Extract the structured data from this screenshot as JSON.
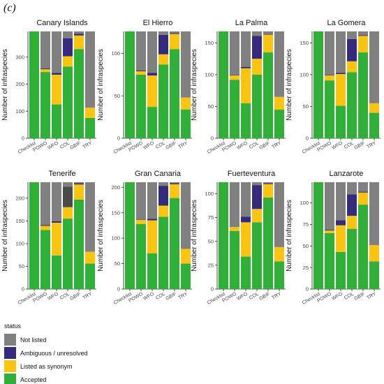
{
  "figure_label": "(c)",
  "legend": {
    "title": "status",
    "entries": [
      {
        "key": "notlisted",
        "label": "Not listed"
      },
      {
        "key": "ambiguous",
        "label": "Ambiguous / unresolved"
      },
      {
        "key": "synonym",
        "label": "Listed as synonym"
      },
      {
        "key": "accepted",
        "label": "Accepted"
      }
    ]
  },
  "colors": {
    "notlisted": "#808080",
    "ambiguous": "#362a7e",
    "synonym": "#fbc40f",
    "accepted": "#2eb136",
    "dark_grey": "#4a4a4a"
  },
  "chart_data": [
    {
      "type": "bar",
      "stacked": true,
      "title": "Canary Islands",
      "ylabel": "Number of infraspecies",
      "ylim": [
        0,
        395
      ],
      "yticks": [
        0,
        100,
        200,
        300
      ],
      "categories": [
        "Checklist",
        "POWO",
        "WFO",
        "COL",
        "GBIF",
        "TRY"
      ],
      "series": [
        {
          "key": "accepted",
          "values": [
            395,
            245,
            125,
            265,
            330,
            75
          ]
        },
        {
          "key": "synonym",
          "values": [
            0,
            10,
            110,
            38,
            50,
            38
          ]
        },
        {
          "key": "ambiguous",
          "values": [
            0,
            3,
            7,
            67,
            6,
            0
          ]
        },
        {
          "key": "notlisted",
          "values": [
            0,
            137,
            153,
            25,
            9,
            282
          ]
        }
      ]
    },
    {
      "type": "bar",
      "stacked": true,
      "title": "El Hierro",
      "ylabel": "Number of infraspecies",
      "ylim": [
        0,
        126
      ],
      "yticks": [
        0,
        50,
        100
      ],
      "categories": [
        "Checklist",
        "POWO",
        "WFO",
        "COL",
        "GBIF",
        "TRY"
      ],
      "series": [
        {
          "key": "accepted",
          "values": [
            126,
            75,
            37,
            87,
            105,
            34
          ]
        },
        {
          "key": "synonym",
          "values": [
            0,
            4,
            37,
            12,
            18,
            14
          ]
        },
        {
          "key": "ambiguous",
          "values": [
            0,
            1,
            3,
            23,
            1,
            0
          ]
        },
        {
          "key": "notlisted",
          "values": [
            0,
            46,
            49,
            4,
            2,
            78
          ]
        }
      ]
    },
    {
      "type": "bar",
      "stacked": true,
      "title": "La Palma",
      "ylabel": "Number of infraspecies",
      "ylim": [
        0,
        168
      ],
      "yticks": [
        0,
        50,
        100,
        150
      ],
      "categories": [
        "Checklist",
        "POWO",
        "WFO",
        "COL",
        "GBIF",
        "TRY"
      ],
      "series": [
        {
          "key": "accepted",
          "values": [
            168,
            92,
            55,
            100,
            135,
            45
          ]
        },
        {
          "key": "synonym",
          "values": [
            0,
            7,
            55,
            25,
            28,
            20
          ]
        },
        {
          "key": "ambiguous",
          "values": [
            0,
            1,
            2,
            36,
            1,
            0
          ]
        },
        {
          "key": "notlisted",
          "values": [
            0,
            68,
            56,
            7,
            4,
            103
          ]
        }
      ]
    },
    {
      "type": "bar",
      "stacked": true,
      "title": "La Gomera",
      "ylabel": "Number of infraspecies",
      "ylim": [
        0,
        168
      ],
      "yticks": [
        0,
        50,
        100,
        150
      ],
      "categories": [
        "Checklist",
        "POWO",
        "WFO",
        "COL",
        "GBIF",
        "TRY"
      ],
      "series": [
        {
          "key": "accepted",
          "values": [
            168,
            91,
            51,
            104,
            135,
            40
          ]
        },
        {
          "key": "synonym",
          "values": [
            0,
            8,
            50,
            17,
            26,
            15
          ]
        },
        {
          "key": "ambiguous",
          "values": [
            0,
            1,
            2,
            35,
            1,
            0
          ]
        },
        {
          "key": "notlisted",
          "values": [
            0,
            68,
            65,
            12,
            6,
            113
          ]
        }
      ]
    },
    {
      "type": "bar",
      "stacked": true,
      "title": "Tenerife",
      "ylabel": "Number of infraspecies",
      "ylim": [
        0,
        235
      ],
      "yticks": [
        0,
        50,
        100,
        150,
        200
      ],
      "categories": [
        "Checklist",
        "POWO",
        "WFO",
        "COL",
        "GBIF",
        "TRY"
      ],
      "series": [
        {
          "key": "accepted",
          "values": [
            235,
            130,
            74,
            155,
            197,
            56
          ]
        },
        {
          "key": "synonym",
          "values": [
            0,
            9,
            72,
            25,
            33,
            26
          ]
        },
        {
          "key": "ambiguous",
          "values": [
            0,
            2,
            3,
            1,
            3,
            0
          ]
        },
        {
          "key": "dark",
          "values": [
            0,
            0,
            0,
            44,
            0,
            0
          ]
        },
        {
          "key": "notlisted",
          "values": [
            0,
            94,
            86,
            10,
            2,
            153
          ]
        }
      ]
    },
    {
      "type": "bar",
      "stacked": true,
      "title": "Gran Canaria",
      "ylabel": "Number of infraspecies",
      "ylim": [
        0,
        210
      ],
      "yticks": [
        0,
        50,
        100,
        150,
        200
      ],
      "categories": [
        "Checklist",
        "POWO",
        "WFO",
        "COL",
        "GBIF",
        "TRY"
      ],
      "series": [
        {
          "key": "accepted",
          "values": [
            210,
            128,
            70,
            142,
            179,
            50
          ]
        },
        {
          "key": "synonym",
          "values": [
            0,
            8,
            65,
            22,
            27,
            29
          ]
        },
        {
          "key": "ambiguous",
          "values": [
            0,
            1,
            3,
            39,
            2,
            0
          ]
        },
        {
          "key": "notlisted",
          "values": [
            0,
            73,
            72,
            7,
            2,
            131
          ]
        }
      ]
    },
    {
      "type": "bar",
      "stacked": true,
      "title": "Fuerteventura",
      "ylabel": "Number of infraspecies",
      "ylim": [
        0,
        112
      ],
      "yticks": [
        0,
        25,
        50,
        75,
        100
      ],
      "categories": [
        "Checklist",
        "POWO",
        "WFO",
        "COL",
        "GBIF",
        "TRY"
      ],
      "series": [
        {
          "key": "accepted",
          "values": [
            112,
            61,
            34,
            70,
            96,
            29
          ]
        },
        {
          "key": "synonym",
          "values": [
            0,
            4,
            36,
            14,
            14,
            15
          ]
        },
        {
          "key": "ambiguous",
          "values": [
            0,
            0,
            6,
            25,
            1,
            0
          ]
        },
        {
          "key": "notlisted",
          "values": [
            0,
            47,
            36,
            3,
            1,
            68
          ]
        }
      ]
    },
    {
      "type": "bar",
      "stacked": true,
      "title": "Lanzarote",
      "ylabel": "Number of infraspecies",
      "ylim": [
        0,
        124
      ],
      "yticks": [
        0,
        25,
        50,
        75,
        100
      ],
      "categories": [
        "Checklist",
        "POWO",
        "WFO",
        "COL",
        "GBIF",
        "TRY"
      ],
      "series": [
        {
          "key": "accepted",
          "values": [
            124,
            65,
            43,
            70,
            98,
            32
          ]
        },
        {
          "key": "synonym",
          "values": [
            0,
            3,
            31,
            15,
            14,
            19
          ]
        },
        {
          "key": "ambiguous",
          "values": [
            0,
            1,
            6,
            25,
            1,
            0
          ]
        },
        {
          "key": "notlisted",
          "values": [
            0,
            55,
            44,
            14,
            11,
            73
          ]
        }
      ]
    }
  ]
}
